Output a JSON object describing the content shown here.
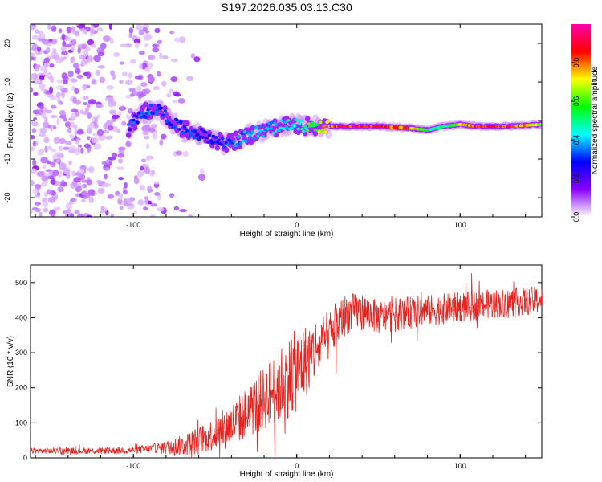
{
  "title": "S197.2026.035.03.13.C30",
  "chart_data": [
    {
      "type": "heatmap",
      "name": "spectrogram",
      "xlabel": "Height of straight line (km)",
      "ylabel": "Frequency (Hz)",
      "xlim": [
        -163,
        150
      ],
      "ylim": [
        -25,
        25
      ],
      "xticks": [
        -100,
        0,
        100
      ],
      "yticks": [
        -20,
        -10,
        0,
        10,
        20
      ],
      "colorbar": {
        "label": "Normalized spectral amplitude",
        "range": [
          0,
          1
        ],
        "ticks": [
          "0.0",
          "0.2",
          "0.4",
          "0.6",
          "0.8"
        ],
        "colors": [
          "#ffffff",
          "#8800ff",
          "#0000ff",
          "#00ffff",
          "#00ff00",
          "#ffff00",
          "#ff0000",
          "#ff00aa"
        ]
      },
      "ridge": {
        "x": [
          -103,
          -95,
          -85,
          -75,
          -65,
          -55,
          -45,
          -35,
          -25,
          -15,
          -5,
          5,
          15,
          30,
          50,
          70,
          80,
          90,
          100,
          110,
          130,
          150
        ],
        "frequency": [
          -2,
          2,
          3,
          -1,
          -3,
          -4,
          -6,
          -5,
          -3,
          -2,
          -1,
          -1.5,
          -1.5,
          -1.5,
          -1.5,
          -2,
          -2.5,
          -1.5,
          -1,
          -1.5,
          -1.5,
          -1
        ],
        "amplitude": [
          0.3,
          0.35,
          0.3,
          0.3,
          0.3,
          0.25,
          0.3,
          0.35,
          0.4,
          0.4,
          0.45,
          0.5,
          0.7,
          0.9,
          0.85,
          0.8,
          0.5,
          0.5,
          0.7,
          0.85,
          0.85,
          0.6
        ]
      }
    },
    {
      "type": "line",
      "name": "snr",
      "xlabel": "Height of straight line (km)",
      "ylabel": "SNR (10 * v/v)",
      "xlim": [
        -163,
        150
      ],
      "ylim": [
        0,
        550
      ],
      "xticks": [
        -100,
        0,
        100
      ],
      "yticks": [
        0,
        100,
        200,
        300,
        400,
        500
      ],
      "color": "#e8221e",
      "trend": {
        "x": [
          -163,
          -140,
          -120,
          -100,
          -85,
          -70,
          -60,
          -50,
          -40,
          -30,
          -20,
          -10,
          0,
          10,
          20,
          30,
          40,
          50,
          60,
          80,
          100,
          120,
          150
        ],
        "snr": [
          20,
          20,
          20,
          22,
          28,
          35,
          50,
          70,
          95,
          130,
          170,
          210,
          250,
          300,
          350,
          410,
          420,
          400,
          410,
          420,
          430,
          440,
          450
        ]
      },
      "spread": {
        "x": [
          -163,
          -100,
          -85,
          -70,
          -50,
          -30,
          -10,
          0,
          20,
          40,
          80,
          150
        ],
        "amplitude": [
          8,
          10,
          15,
          30,
          50,
          75,
          110,
          120,
          70,
          50,
          45,
          40
        ]
      }
    }
  ]
}
